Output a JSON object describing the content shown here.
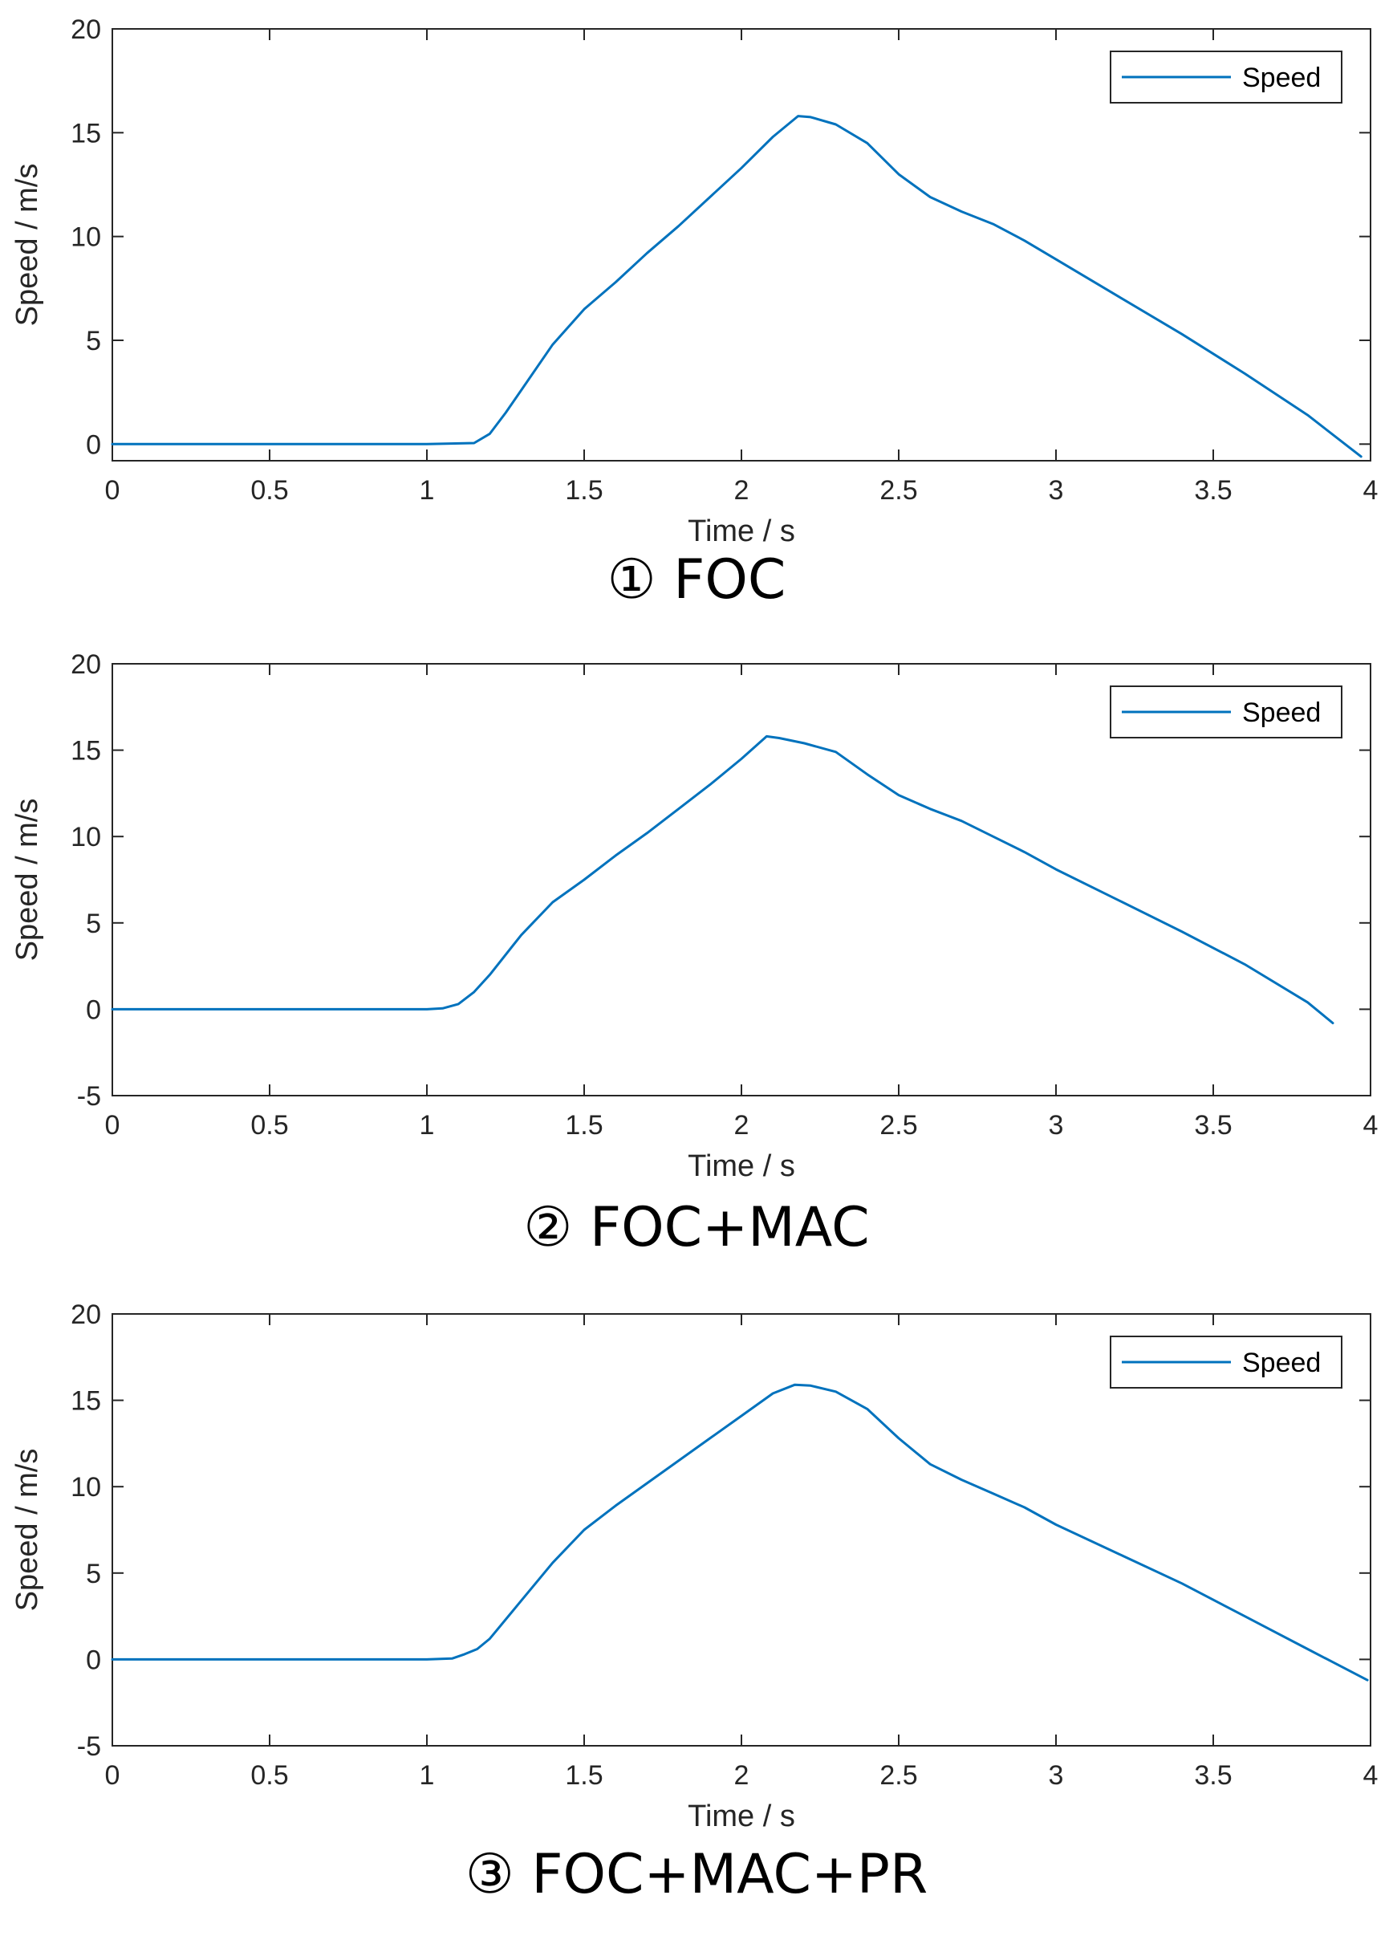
{
  "chart_data": [
    {
      "type": "line",
      "caption": "① FOC",
      "xlabel": "Time / s",
      "ylabel": "Speed / m/s",
      "xlim": [
        0,
        4
      ],
      "ylim": [
        -0.8,
        20
      ],
      "xticks": [
        0,
        0.5,
        1,
        1.5,
        2,
        2.5,
        3,
        3.5,
        4
      ],
      "xtick_labels": [
        "0",
        "0.5",
        "1",
        "1.5",
        "2",
        "2.5",
        "3",
        "3.5",
        "4"
      ],
      "yticks": [
        0,
        5,
        10,
        15,
        20
      ],
      "ytick_labels": [
        "0",
        "5",
        "10",
        "15",
        "20"
      ],
      "grid": false,
      "legend": {
        "position": "top-right",
        "entries": [
          "Speed"
        ]
      },
      "series": [
        {
          "name": "Speed",
          "color": "#0072BD",
          "x": [
            0,
            0.5,
            1.0,
            1.15,
            1.2,
            1.25,
            1.3,
            1.4,
            1.5,
            1.6,
            1.7,
            1.8,
            1.9,
            2.0,
            2.1,
            2.18,
            2.22,
            2.3,
            2.4,
            2.5,
            2.6,
            2.7,
            2.8,
            2.9,
            3.0,
            3.2,
            3.4,
            3.6,
            3.8,
            3.97
          ],
          "y": [
            0,
            0,
            0,
            0.05,
            0.5,
            1.5,
            2.6,
            4.8,
            6.5,
            7.8,
            9.2,
            10.5,
            11.9,
            13.3,
            14.8,
            15.8,
            15.75,
            15.4,
            14.5,
            13.0,
            11.9,
            11.2,
            10.6,
            9.8,
            8.9,
            7.1,
            5.3,
            3.4,
            1.4,
            -0.6
          ]
        }
      ]
    },
    {
      "type": "line",
      "caption": "② FOC+MAC",
      "xlabel": "Time / s",
      "ylabel": "Speed / m/s",
      "xlim": [
        0,
        4
      ],
      "ylim": [
        -5,
        20
      ],
      "xticks": [
        0,
        0.5,
        1,
        1.5,
        2,
        2.5,
        3,
        3.5,
        4
      ],
      "xtick_labels": [
        "0",
        "0.5",
        "1",
        "1.5",
        "2",
        "2.5",
        "3",
        "3.5",
        "4"
      ],
      "yticks": [
        -5,
        0,
        5,
        10,
        15,
        20
      ],
      "ytick_labels": [
        "-5",
        "0",
        "5",
        "10",
        "15",
        "20"
      ],
      "grid": false,
      "legend": {
        "position": "top-right",
        "entries": [
          "Speed"
        ]
      },
      "series": [
        {
          "name": "Speed",
          "color": "#0072BD",
          "x": [
            0,
            0.5,
            1.0,
            1.05,
            1.1,
            1.15,
            1.2,
            1.3,
            1.4,
            1.5,
            1.6,
            1.7,
            1.8,
            1.9,
            2.0,
            2.08,
            2.12,
            2.2,
            2.3,
            2.4,
            2.5,
            2.6,
            2.7,
            2.8,
            2.9,
            3.0,
            3.2,
            3.4,
            3.6,
            3.8,
            3.88
          ],
          "y": [
            0,
            0,
            0,
            0.05,
            0.3,
            1.0,
            2.0,
            4.3,
            6.2,
            7.5,
            8.9,
            10.2,
            11.6,
            13.0,
            14.5,
            15.8,
            15.7,
            15.4,
            14.9,
            13.6,
            12.4,
            11.6,
            10.9,
            10.0,
            9.1,
            8.1,
            6.3,
            4.5,
            2.6,
            0.4,
            -0.8
          ]
        }
      ]
    },
    {
      "type": "line",
      "caption": "③ FOC+MAC+PR",
      "xlabel": "Time / s",
      "ylabel": "Speed / m/s",
      "xlim": [
        0,
        4
      ],
      "ylim": [
        -5,
        20
      ],
      "xticks": [
        0,
        0.5,
        1,
        1.5,
        2,
        2.5,
        3,
        3.5,
        4
      ],
      "xtick_labels": [
        "0",
        "0.5",
        "1",
        "1.5",
        "2",
        "2.5",
        "3",
        "3.5",
        "4"
      ],
      "yticks": [
        -5,
        0,
        5,
        10,
        15,
        20
      ],
      "ytick_labels": [
        "-5",
        "0",
        "5",
        "10",
        "15",
        "20"
      ],
      "grid": false,
      "legend": {
        "position": "top-right",
        "entries": [
          "Speed"
        ]
      },
      "series": [
        {
          "name": "Speed",
          "color": "#0072BD",
          "x": [
            0,
            0.5,
            1.0,
            1.08,
            1.12,
            1.16,
            1.2,
            1.3,
            1.4,
            1.5,
            1.6,
            1.7,
            1.8,
            1.9,
            2.0,
            2.1,
            2.17,
            2.22,
            2.3,
            2.4,
            2.5,
            2.6,
            2.7,
            2.8,
            2.9,
            3.0,
            3.2,
            3.4,
            3.6,
            3.8,
            3.99
          ],
          "y": [
            0,
            0,
            0,
            0.05,
            0.3,
            0.6,
            1.2,
            3.4,
            5.6,
            7.5,
            8.9,
            10.2,
            11.5,
            12.8,
            14.1,
            15.4,
            15.9,
            15.85,
            15.5,
            14.5,
            12.8,
            11.3,
            10.4,
            9.6,
            8.8,
            7.8,
            6.1,
            4.4,
            2.5,
            0.6,
            -1.2
          ]
        }
      ]
    }
  ]
}
